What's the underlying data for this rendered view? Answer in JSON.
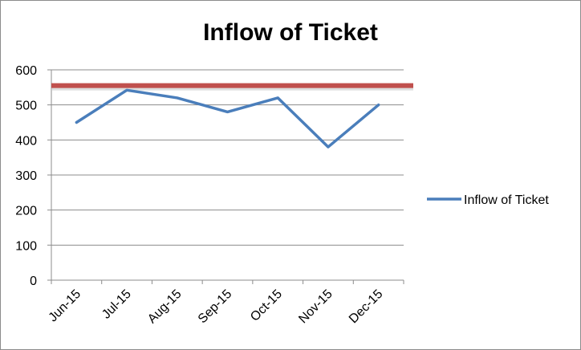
{
  "chart_data": {
    "type": "line",
    "title": "Inflow of Ticket",
    "categories": [
      "Jun-15",
      "Jul-15",
      "Aug-15",
      "Sep-15",
      "Oct-15",
      "Nov-15",
      "Dec-15"
    ],
    "series": [
      {
        "name": "Inflow of Ticket",
        "values": [
          450,
          542,
          520,
          480,
          520,
          380,
          500
        ],
        "color": "#4a7ebb"
      }
    ],
    "threshold": {
      "value": 555,
      "color": "#c0504d"
    },
    "y_ticks": [
      "0",
      "100",
      "200",
      "300",
      "400",
      "500",
      "600"
    ],
    "ylim": [
      0,
      600
    ],
    "grid": true,
    "legend_position": "right"
  }
}
